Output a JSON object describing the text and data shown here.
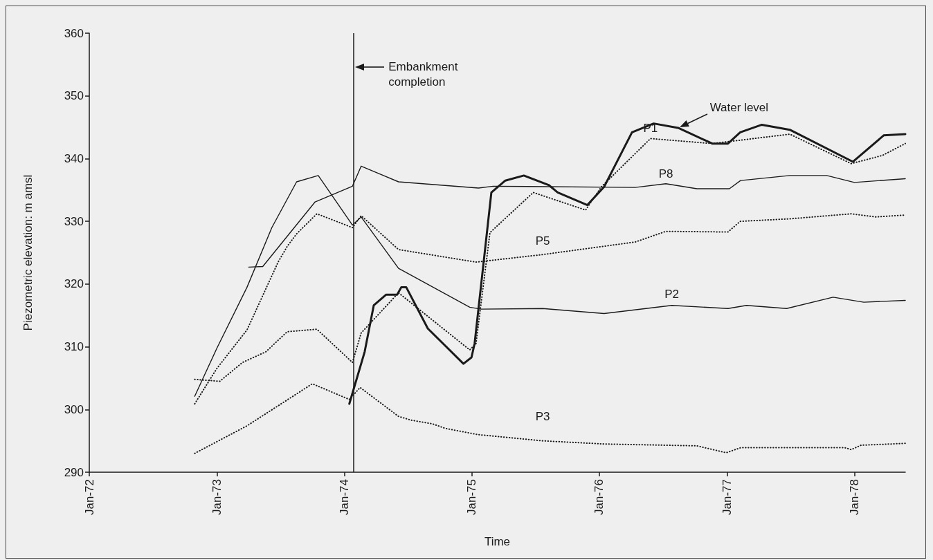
{
  "chart_data": {
    "type": "line",
    "xlabel": "Time",
    "ylabel": "Piezometric elevation: m amsl",
    "marker": "none",
    "xlim": [
      "1972-01-01",
      "1978-05-27"
    ],
    "xticks": [
      {
        "value": "1972-01-01",
        "label": "Jan-72"
      },
      {
        "value": "1973-01-01",
        "label": "Jan-73"
      },
      {
        "value": "1974-01-01",
        "label": "Jan-74"
      },
      {
        "value": "1975-01-01",
        "label": "Jan-75"
      },
      {
        "value": "1976-01-01",
        "label": "Jan-76"
      },
      {
        "value": "1977-01-01",
        "label": "Jan-77"
      },
      {
        "value": "1978-01-01",
        "label": "Jan-78"
      }
    ],
    "ylim": [
      290,
      360
    ],
    "yticks": [
      290,
      300,
      310,
      320,
      330,
      340,
      350,
      360
    ],
    "ref_lines": [
      {
        "axis": "x",
        "value": "1974-01-28",
        "label": "Embankment completion",
        "color": "#1a1a1a"
      }
    ],
    "annotations": [
      {
        "text": "Water level",
        "x": "1976-08-14",
        "y": 344.9
      }
    ],
    "series": [
      {
        "color": "#1a1a1a",
        "line_style": "solid",
        "x": [
          "1974-01-15",
          "1974-02-28",
          "1974-03-26",
          "1974-04-30",
          "1974-06-01",
          "1974-06-13",
          "1974-06-27",
          "1974-08-28",
          "1974-12-08",
          "1974-12-31",
          "1975-01-09",
          "1975-02-26",
          "1975-04-07",
          "1975-05-30",
          "1975-08-09",
          "1975-09-04",
          "1975-11-28",
          "1976-01-15",
          "1976-04-04",
          "1976-06-05",
          "1976-08-14",
          "1976-11-20",
          "1977-01-04",
          "1977-02-08",
          "1977-04-11",
          "1977-06-30",
          "1977-12-28",
          "1978-03-26",
          "1978-05-27"
        ],
        "values": [
          300.9,
          309.2,
          316.6,
          318.3,
          318.3,
          319.5,
          319.5,
          312.9,
          307.3,
          308.3,
          310.5,
          334.6,
          336.5,
          337.3,
          335.8,
          334.6,
          332.6,
          335.5,
          344.2,
          345.6,
          344.9,
          342.4,
          342.4,
          344.2,
          345.4,
          344.6,
          339.5,
          343.7,
          343.9
        ]
      },
      {
        "name": "P1",
        "color": "#1a1a1a",
        "line_style": "dotted",
        "x": [
          "1972-10-29",
          "1973-01-09",
          "1973-03-15",
          "1973-05-21",
          "1973-07-21",
          "1973-10-14",
          "1974-01-24",
          "1974-02-18",
          "1974-06-05",
          "1974-12-26",
          "1975-01-13",
          "1975-02-22",
          "1975-06-26",
          "1975-11-23",
          "1976-01-07",
          "1976-05-27",
          "1976-11-20",
          "1977-06-30",
          "1977-12-23",
          "1978-03-22",
          "1978-05-27"
        ],
        "values": [
          304.8,
          304.5,
          307.5,
          309.2,
          312.4,
          312.8,
          307.5,
          312.2,
          318.6,
          309.5,
          310.5,
          328.2,
          334.6,
          331.8,
          335.5,
          343.2,
          342.4,
          343.9,
          339.2,
          340.5,
          342.4
        ]
      },
      {
        "name": "P8",
        "color": "#1a1a1a",
        "line_style": "solid",
        "x": [
          "1973-04-02",
          "1973-05-12",
          "1973-10-09",
          "1974-01-24",
          "1974-02-18",
          "1974-06-05",
          "1975-01-20",
          "1975-03-03",
          "1976-04-13",
          "1976-07-10",
          "1976-10-07",
          "1977-01-08",
          "1977-02-09",
          "1977-06-30",
          "1977-10-14",
          "1978-01-01",
          "1978-05-27"
        ],
        "values": [
          322.7,
          322.8,
          333.1,
          335.6,
          338.8,
          336.3,
          335.3,
          335.6,
          335.4,
          336.0,
          335.2,
          335.2,
          336.5,
          337.3,
          337.3,
          336.2,
          336.8
        ]
      },
      {
        "name": "P5",
        "color": "#1a1a1a",
        "line_style": "dotted",
        "x": [
          "1972-10-29",
          "1972-12-31",
          "1973-03-28",
          "1973-06-25",
          "1973-07-21",
          "1973-08-17",
          "1973-10-14",
          "1974-01-24",
          "1974-02-18",
          "1974-06-05",
          "1975-01-13",
          "1975-07-23",
          "1976-04-13",
          "1976-07-10",
          "1977-01-04",
          "1977-02-08",
          "1977-06-30",
          "1977-12-23",
          "1978-03-04",
          "1978-05-27"
        ],
        "values": [
          300.9,
          306.5,
          312.7,
          323.5,
          326.0,
          328.0,
          331.2,
          329.0,
          330.9,
          325.5,
          323.5,
          324.7,
          326.7,
          328.4,
          328.3,
          330.0,
          330.4,
          331.2,
          330.7,
          331.0
        ]
      },
      {
        "name": "P2",
        "color": "#1a1a1a",
        "line_style": "solid",
        "x": [
          "1972-10-29",
          "1972-12-31",
          "1973-03-28",
          "1973-06-07",
          "1973-08-17",
          "1973-10-18",
          "1974-01-24",
          "1974-02-18",
          "1974-06-05",
          "1974-12-26",
          "1975-01-27",
          "1975-07-23",
          "1976-01-15",
          "1976-07-27",
          "1977-01-04",
          "1977-02-26",
          "1977-06-21",
          "1977-11-01",
          "1978-01-28",
          "1978-05-27"
        ],
        "values": [
          302.1,
          309.7,
          319.5,
          329.0,
          336.3,
          337.3,
          329.4,
          330.7,
          322.5,
          316.3,
          316.0,
          316.1,
          315.3,
          316.6,
          316.1,
          316.6,
          316.1,
          317.9,
          317.1,
          317.4
        ]
      },
      {
        "name": "P3",
        "color": "#1a1a1a",
        "line_style": "dotted",
        "x": [
          "1972-10-29",
          "1973-03-28",
          "1973-10-01",
          "1974-01-15",
          "1974-02-15",
          "1974-06-05",
          "1974-07-11",
          "1974-09-11",
          "1974-10-16",
          "1975-01-18",
          "1975-07-23",
          "1976-01-15",
          "1976-10-07",
          "1976-12-30",
          "1977-02-09",
          "1977-12-05",
          "1977-12-23",
          "1978-01-20",
          "1978-05-27"
        ],
        "values": [
          293.0,
          297.4,
          304.1,
          301.6,
          303.5,
          298.9,
          298.3,
          297.7,
          297.0,
          296.0,
          295.0,
          294.5,
          294.2,
          293.1,
          293.9,
          293.9,
          293.6,
          294.3,
          294.6
        ]
      }
    ]
  }
}
